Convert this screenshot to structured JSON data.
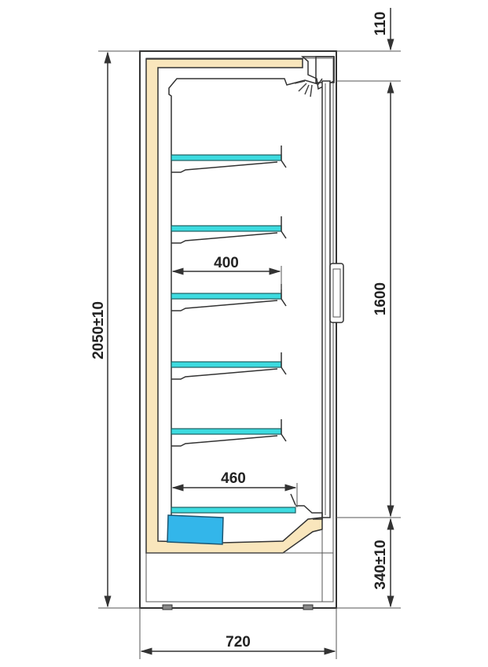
{
  "dimensions": {
    "total_height": "2050±10",
    "width": "720",
    "top_section": "110",
    "door_height": "1600",
    "base_height": "340±10",
    "upper_shelf_depth": "400",
    "bottom_shelf_depth": "460"
  },
  "colors": {
    "insulation": "#f9e6bc",
    "shelf": "#3ddbe0",
    "evaporator": "#33b6ea",
    "outline": "#333333"
  },
  "shelf_count": 6
}
